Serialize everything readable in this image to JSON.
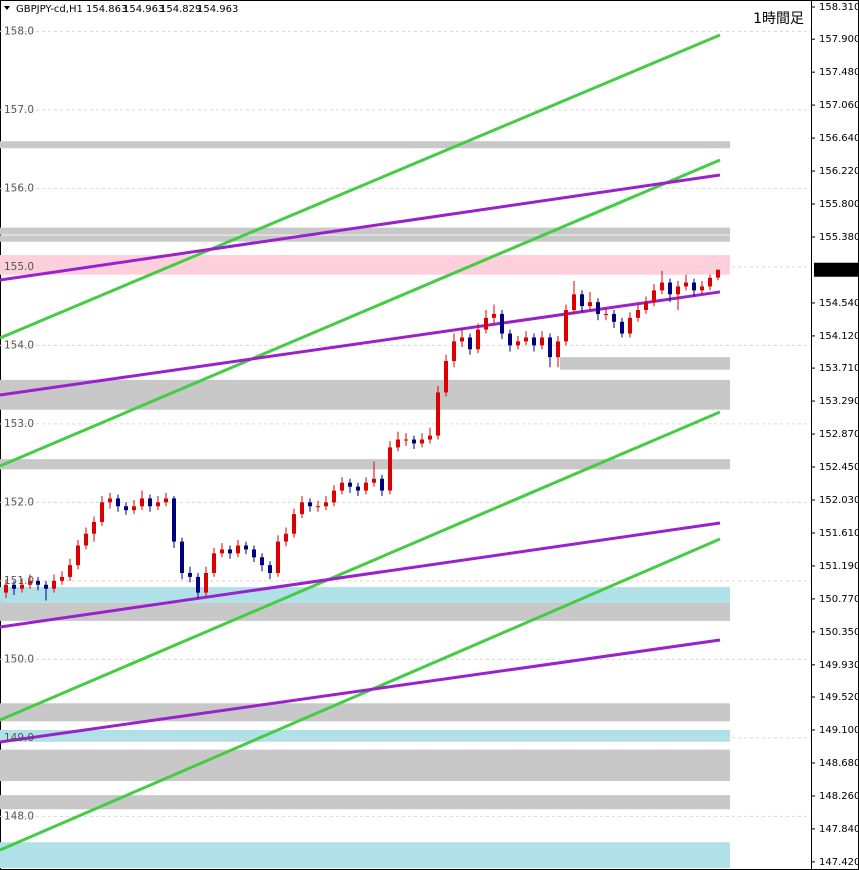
{
  "chart_data": {
    "type": "candlestick",
    "title": "GBPJPY-cd,H1",
    "annotation": "1時間足",
    "up_color": "#dd0000",
    "down_color": "#000080",
    "xlim": [
      -0.75,
      100.625
    ],
    "ylim": [
      147.342,
      158.399
    ],
    "yticks": [
      {
        "value": 158.31,
        "label": "158.310"
      },
      {
        "value": 157.9,
        "label": "157.900"
      },
      {
        "value": 157.48,
        "label": "157.480"
      },
      {
        "value": 157.06,
        "label": "157.060"
      },
      {
        "value": 156.64,
        "label": "156.640"
      },
      {
        "value": 156.22,
        "label": "156.220"
      },
      {
        "value": 155.8,
        "label": "155.800"
      },
      {
        "value": 155.38,
        "label": "155.380"
      },
      {
        "value": 154.54,
        "label": "154.540"
      },
      {
        "value": 154.12,
        "label": "154.120"
      },
      {
        "value": 153.71,
        "label": "153.710"
      },
      {
        "value": 153.29,
        "label": "153.290"
      },
      {
        "value": 152.87,
        "label": "152.870"
      },
      {
        "value": 152.45,
        "label": "152.450"
      },
      {
        "value": 152.03,
        "label": "152.030"
      },
      {
        "value": 151.61,
        "label": "151.610"
      },
      {
        "value": 151.19,
        "label": "151.190"
      },
      {
        "value": 150.77,
        "label": "150.770"
      },
      {
        "value": 150.35,
        "label": "150.350"
      },
      {
        "value": 149.93,
        "label": "149.930"
      },
      {
        "value": 149.52,
        "label": "149.520"
      },
      {
        "value": 149.1,
        "label": "149.100"
      },
      {
        "value": 148.68,
        "label": "148.680"
      },
      {
        "value": 148.26,
        "label": "148.260"
      },
      {
        "value": 147.84,
        "label": "147.840"
      },
      {
        "value": 147.42,
        "label": "147.420"
      }
    ],
    "levels": [
      {
        "value": 158,
        "label": "158.0"
      },
      {
        "value": 157,
        "label": "157.0"
      },
      {
        "value": 156,
        "label": "156.0"
      },
      {
        "value": 155,
        "label": "155.0"
      },
      {
        "value": 154,
        "label": "154.0"
      },
      {
        "value": 153,
        "label": "153.0"
      },
      {
        "value": 152,
        "label": "152.0"
      },
      {
        "value": 151,
        "label": "151.0"
      },
      {
        "value": 150,
        "label": "150.0"
      },
      {
        "value": 149,
        "label": "149.0"
      },
      {
        "value": 148,
        "label": "148.0"
      }
    ],
    "zones": [
      {
        "x": [
          -0.75,
          90.5
        ],
        "y": [
          156.51,
          156.6
        ],
        "color": "#c8c8c8"
      },
      {
        "x": [
          -0.75,
          90.5
        ],
        "y": [
          155.41,
          155.5
        ],
        "color": "#c8c8c8"
      },
      {
        "x": [
          -0.75,
          90.5
        ],
        "y": [
          155.32,
          155.4
        ],
        "color": "#c8c8c8"
      },
      {
        "x": [
          -0.75,
          90.5
        ],
        "y": [
          154.9,
          155.15
        ],
        "color": "#ffd0dc"
      },
      {
        "x": [
          69.25,
          90.5
        ],
        "y": [
          153.69,
          153.85
        ],
        "color": "#c8c8c8"
      },
      {
        "x": [
          -0.75,
          90.5
        ],
        "y": [
          153.18,
          153.56
        ],
        "color": "#c8c8c8"
      },
      {
        "x": [
          -0.75,
          90.5
        ],
        "y": [
          152.42,
          152.55
        ],
        "color": "#c8c8c8"
      },
      {
        "x": [
          -0.75,
          90.5
        ],
        "y": [
          150.72,
          150.92
        ],
        "color": "#b0e0e8"
      },
      {
        "x": [
          -0.75,
          90.5
        ],
        "y": [
          150.49,
          150.72
        ],
        "color": "#c8c8c8"
      },
      {
        "x": [
          -0.75,
          90.5
        ],
        "y": [
          149.21,
          149.44
        ],
        "color": "#c8c8c8"
      },
      {
        "x": [
          -0.75,
          90.5
        ],
        "y": [
          148.95,
          149.1
        ],
        "color": "#b0e0e8"
      },
      {
        "x": [
          -0.75,
          90.5
        ],
        "y": [
          148.45,
          148.85
        ],
        "color": "#c8c8c8"
      },
      {
        "x": [
          -0.75,
          90.5
        ],
        "y": [
          148.09,
          148.27
        ],
        "color": "#c8c8c8"
      },
      {
        "x": [
          -0.75,
          90.5
        ],
        "y": [
          147.342,
          147.67
        ],
        "color": "#b0e0e8"
      }
    ],
    "trendlines": [
      {
        "x": [
          -0.75,
          89.25
        ],
        "y": [
          154.094,
          157.953
        ],
        "color": "#44cc44"
      },
      {
        "x": [
          -0.75,
          89.25
        ],
        "y": [
          152.463,
          156.361
        ],
        "color": "#44cc44"
      },
      {
        "x": [
          -0.75,
          89.25
        ],
        "y": [
          149.227,
          153.151
        ],
        "color": "#44cc44"
      },
      {
        "x": [
          -0.75,
          89.25
        ],
        "y": [
          147.571,
          151.533
        ],
        "color": "#44cc44"
      },
      {
        "x": [
          -0.75,
          89.25
        ],
        "y": [
          154.832,
          156.17
        ],
        "color": "#9922cc"
      },
      {
        "x": [
          -0.75,
          89.25
        ],
        "y": [
          153.367,
          154.68
        ],
        "color": "#9922cc"
      },
      {
        "x": [
          -0.75,
          89.25
        ],
        "y": [
          150.412,
          151.737
        ],
        "color": "#9922cc"
      },
      {
        "x": [
          -0.75,
          89.25
        ],
        "y": [
          148.947,
          150.246
        ],
        "color": "#9922cc"
      }
    ],
    "open": [
      150.85,
      150.95,
      150.9,
      150.95,
      151.0,
      150.95,
      150.9,
      151.0,
      151.05,
      151.2,
      151.45,
      151.6,
      151.75,
      152.0,
      152.05,
      151.95,
      151.9,
      151.95,
      152.05,
      151.95,
      152.0,
      152.05,
      151.5,
      151.1,
      151.05,
      150.85,
      151.1,
      151.35,
      151.4,
      151.35,
      151.45,
      151.4,
      151.3,
      151.2,
      151.1,
      151.5,
      151.6,
      151.85,
      152.0,
      151.95,
      151.95,
      152.0,
      152.15,
      152.25,
      152.2,
      152.15,
      152.25,
      152.3,
      152.15,
      152.7,
      152.8,
      152.8,
      152.75,
      152.8,
      152.85,
      153.4,
      153.8,
      154.05,
      154.1,
      153.95,
      154.2,
      154.35,
      154.4,
      154.15,
      154.0,
      154.05,
      154.1,
      154.0,
      154.1,
      153.85,
      154.05,
      154.45,
      154.65,
      154.5,
      154.55,
      154.4,
      154.4,
      154.3,
      154.15,
      154.35,
      154.45,
      154.55,
      154.7,
      154.8,
      154.65,
      154.75,
      154.8,
      154.7,
      154.75,
      154.863
    ],
    "high": [
      151.02,
      151.0,
      151.03,
      151.08,
      151.05,
      151.0,
      151.08,
      151.12,
      151.28,
      151.52,
      151.68,
      151.82,
      152.08,
      152.12,
      152.1,
      152.0,
      152.03,
      152.15,
      152.1,
      152.08,
      152.12,
      152.08,
      151.55,
      151.18,
      151.1,
      151.18,
      151.42,
      151.48,
      151.45,
      151.52,
      151.5,
      151.45,
      151.35,
      151.25,
      151.58,
      151.68,
      151.92,
      152.08,
      152.05,
      152.02,
      152.08,
      152.22,
      152.32,
      152.3,
      152.25,
      152.32,
      152.52,
      152.35,
      152.78,
      152.9,
      152.88,
      152.85,
      152.88,
      152.95,
      153.48,
      153.88,
      154.15,
      154.22,
      154.15,
      154.28,
      154.45,
      154.52,
      154.45,
      154.2,
      154.12,
      154.18,
      154.15,
      154.18,
      154.15,
      154.12,
      154.52,
      154.82,
      154.7,
      154.68,
      154.6,
      154.48,
      154.45,
      154.35,
      154.42,
      154.52,
      154.62,
      154.78,
      154.95,
      154.85,
      154.82,
      154.9,
      154.85,
      154.82,
      154.9,
      154.963
    ],
    "low": [
      150.78,
      150.82,
      150.85,
      150.9,
      150.88,
      150.75,
      150.85,
      150.95,
      151.0,
      151.15,
      151.4,
      151.5,
      151.7,
      151.92,
      151.88,
      151.84,
      151.85,
      151.9,
      151.88,
      151.9,
      151.95,
      151.42,
      151.02,
      150.98,
      150.78,
      150.8,
      151.05,
      151.3,
      151.28,
      151.3,
      151.34,
      151.24,
      151.12,
      151.02,
      151.05,
      151.44,
      151.55,
      151.8,
      151.88,
      151.88,
      151.9,
      151.95,
      152.1,
      152.12,
      152.08,
      152.1,
      152.2,
      152.08,
      152.1,
      152.65,
      152.72,
      152.68,
      152.7,
      152.75,
      152.8,
      153.35,
      153.72,
      153.98,
      153.88,
      153.9,
      154.15,
      154.28,
      154.08,
      153.92,
      153.95,
      154.0,
      153.92,
      153.95,
      153.72,
      153.72,
      154.0,
      154.4,
      154.42,
      154.45,
      154.32,
      154.32,
      154.22,
      154.1,
      154.1,
      154.3,
      154.4,
      154.5,
      154.65,
      154.55,
      154.45,
      154.7,
      154.62,
      154.65,
      154.7,
      154.829
    ],
    "close": [
      150.95,
      150.9,
      150.95,
      151.0,
      150.95,
      150.9,
      151.0,
      151.05,
      151.2,
      151.45,
      151.6,
      151.75,
      152.0,
      152.05,
      151.95,
      151.9,
      151.95,
      152.05,
      151.95,
      152.0,
      152.05,
      151.5,
      151.1,
      151.05,
      150.85,
      151.1,
      151.35,
      151.4,
      151.35,
      151.45,
      151.4,
      151.3,
      151.2,
      151.1,
      151.5,
      151.6,
      151.85,
      152.0,
      151.95,
      151.95,
      152.0,
      152.15,
      152.25,
      152.2,
      152.15,
      152.25,
      152.3,
      152.15,
      152.7,
      152.8,
      152.8,
      152.75,
      152.8,
      152.85,
      153.4,
      153.8,
      154.05,
      154.1,
      153.95,
      154.2,
      154.35,
      154.4,
      154.15,
      154.0,
      154.05,
      154.1,
      154.0,
      154.1,
      153.85,
      154.05,
      154.45,
      154.65,
      154.5,
      154.55,
      154.4,
      154.4,
      154.3,
      154.15,
      154.35,
      154.45,
      154.55,
      154.7,
      154.8,
      154.65,
      154.75,
      154.8,
      154.7,
      154.75,
      154.86,
      154.963
    ]
  }
}
